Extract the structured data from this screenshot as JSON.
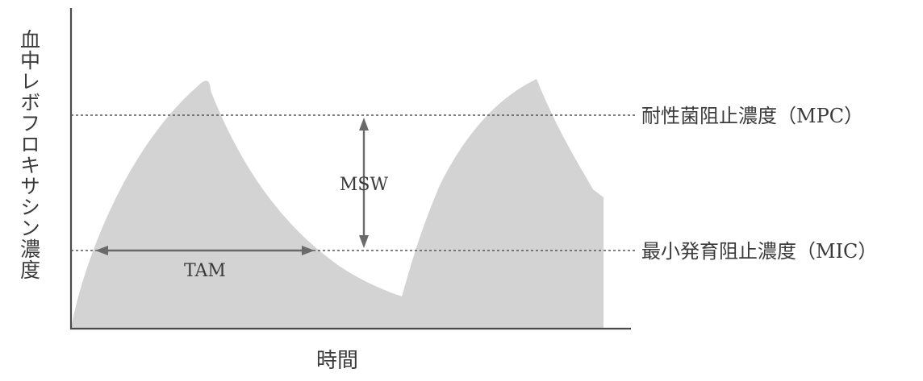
{
  "diagram": {
    "y_axis_label": "血中レボフロキサシン濃度",
    "x_axis_label": "時間",
    "mpc_label": "耐性菌阻止濃度（MPC）",
    "mic_label": "最小発育阻止濃度（MIC）",
    "msw_label": "MSW",
    "tam_label": "TAM"
  },
  "colors": {
    "curve_fill": "#d3d3d3",
    "axis": "#4a4a4a",
    "text": "#3a3a3a"
  }
}
